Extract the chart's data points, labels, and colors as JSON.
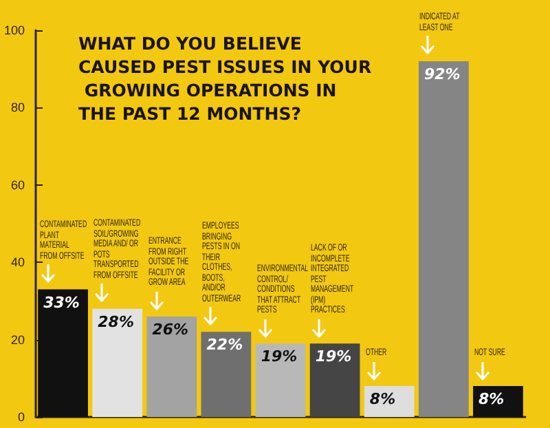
{
  "chart_data": {
    "type": "bar",
    "title": "WHAT DO YOU BELIEVE CAUSED PEST ISSUES IN YOUR GROWING OPERATIONS IN THE PAST 12 MONTHS?",
    "categories": [
      "CONTAMINATED PLANT MATERIAL FROM OFFSITE",
      "CONTAMINATED SOIL/GROWING MEDIA AND/ OR POTS TRANSPORTED FROM OFFSITE",
      "ENTRANCE FROM RIGHT OUTSIDE THE FACILITY OR GROW AREA",
      "EMPLOYEES BRINGING PESTS IN ON THEIR CLOTHES, BOOTS, AND/OR OUTERWEAR",
      "ENVIRONMENTAL CONTROL/ CONDITIONS THAT ATTRACT PESTS",
      "LACK OF OR INCOMPLETE INTEGRATED PEST MANAGEMENT (IPM) PRACTICES",
      "OTHER",
      "INDICATED AT LEAST ONE",
      "NOT SURE"
    ],
    "values": [
      33,
      28,
      26,
      22,
      19,
      19,
      8,
      92,
      8
    ],
    "colors": [
      "#111111",
      "#e2e2e2",
      "#a3a3a3",
      "#6f6f6f",
      "#b8b8b8",
      "#454545",
      "#dedede",
      "#858585",
      "#111111"
    ],
    "value_labels": [
      "33%",
      "28%",
      "26%",
      "22%",
      "19%",
      "19%",
      "8%",
      "92%",
      "8%"
    ],
    "ylim": [
      0,
      100
    ],
    "yticks": [
      0,
      20,
      40,
      60,
      80,
      100
    ],
    "grid": false
  }
}
